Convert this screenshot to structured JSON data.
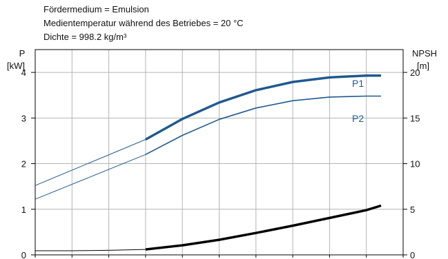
{
  "notes": [
    "Fördermedium = Emulsion",
    "Medientemperatur während des Betriebes = 20 °C",
    "Dichte = 998.2 kg/m³"
  ],
  "colors": {
    "p_series": "#1e5a8e",
    "npsh_series": "#000000",
    "grid": "#b4b4b4",
    "axis": "#000000"
  },
  "chart_data": {
    "type": "line",
    "title": "",
    "xlabel": "",
    "x_range": [
      0,
      100
    ],
    "grid": true,
    "y_left": {
      "label_line1": "P",
      "label_line2": "[kW]",
      "range": [
        0,
        4.5
      ],
      "ticks": [
        0,
        1,
        2,
        3,
        4
      ],
      "tick_labels": [
        "0",
        "1",
        "2",
        "3",
        "4"
      ]
    },
    "y_right": {
      "label_line1": "NPSH",
      "label_line2": "[m]",
      "range": [
        0,
        22.5
      ],
      "ticks": [
        0,
        5,
        10,
        15,
        20
      ],
      "tick_labels": [
        "0",
        "5",
        "10",
        "15",
        "20"
      ]
    },
    "series": [
      {
        "name": "P1",
        "axis": "left",
        "color": "#1e5a8e",
        "extension": {
          "x": [
            0,
            30
          ],
          "y": [
            1.52,
            2.53
          ]
        },
        "values": {
          "x": [
            30,
            40,
            50,
            60,
            70,
            80,
            90,
            94
          ],
          "y": [
            2.53,
            2.98,
            3.34,
            3.61,
            3.79,
            3.89,
            3.93,
            3.93
          ]
        }
      },
      {
        "name": "P2",
        "axis": "left",
        "color": "#1e5a8e",
        "extension": {
          "x": [
            0,
            30
          ],
          "y": [
            1.22,
            2.2
          ]
        },
        "values": {
          "x": [
            30,
            40,
            50,
            60,
            70,
            80,
            90,
            94
          ],
          "y": [
            2.2,
            2.62,
            2.97,
            3.22,
            3.38,
            3.46,
            3.48,
            3.48
          ]
        }
      },
      {
        "name": "NPSH",
        "axis": "right",
        "color": "#000000",
        "extension": {
          "x": [
            0,
            10,
            20,
            30
          ],
          "y": [
            0.45,
            0.45,
            0.5,
            0.6
          ]
        },
        "values": {
          "x": [
            30,
            40,
            50,
            60,
            70,
            80,
            90,
            94
          ],
          "y": [
            0.6,
            1.05,
            1.65,
            2.4,
            3.2,
            4.05,
            4.9,
            5.4
          ]
        }
      }
    ]
  }
}
